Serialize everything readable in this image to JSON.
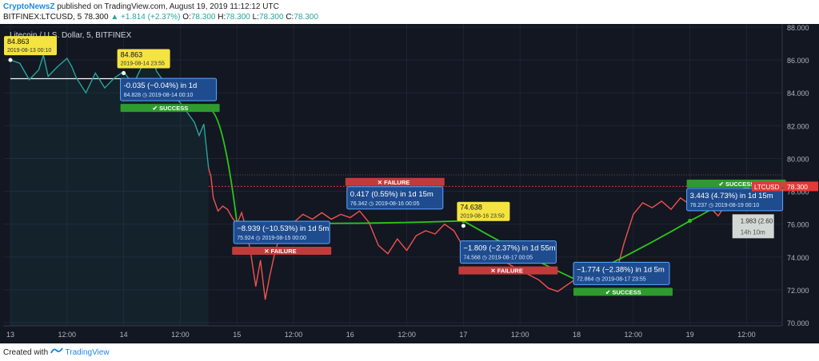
{
  "header": {
    "publisher": "CryptoNewsZ",
    "published_text": "published on TradingView.com, August 19, 2019 11:12:12 UTC"
  },
  "quote": {
    "symbol": "BITFINEX:LTCUSD, 5",
    "price": "78.300",
    "change": "▲ +1.814 (+2.37%)",
    "open_label": "O:",
    "open": "78.300",
    "high_label": "H:",
    "high": "78.300",
    "low_label": "L:",
    "low": "78.300",
    "close_label": "C:",
    "close": "78.300"
  },
  "footer": {
    "created_with": "Created with",
    "brand": "TradingView"
  },
  "colors": {
    "background": "#131722",
    "grid": "#1f2433",
    "axis_text": "#b2b5be",
    "pre_crash_line": "#26a69a",
    "post_crash_line": "#ef5350",
    "arrow": "#2ec31b",
    "label_box": "#1e4c8f",
    "label_border": "#5aa7ff",
    "yellow": "#f5e342",
    "failure": "#c23b3b",
    "success": "#2e9b2e",
    "price_tag": "#e53935"
  },
  "chart_data": {
    "type": "line",
    "title": "Litecoin / U.S. Dollar, 5, BITFINEX",
    "ylim": [
      70.0,
      88.0
    ],
    "y_ticks": [
      "70.000",
      "72.000",
      "74.000",
      "76.000",
      "78.000",
      "80.000",
      "82.000",
      "84.000",
      "86.000",
      "88.000"
    ],
    "x_ticks": [
      "13",
      "12:00",
      "14",
      "12:00",
      "15",
      "12:00",
      "16",
      "12:00",
      "17",
      "12:00",
      "18",
      "12:00",
      "19",
      "12:00"
    ],
    "x_tick_hours": [
      0,
      12,
      24,
      36,
      48,
      60,
      72,
      84,
      96,
      108,
      120,
      132,
      144,
      156
    ],
    "xlim_hours": [
      0,
      164
    ],
    "x_unit_note": "",
    "series": [
      {
        "color_key": "pre_crash_line",
        "x": [
          0,
          2,
          4,
          6,
          7,
          8,
          10,
          12,
          13,
          14,
          16,
          18,
          20,
          22,
          24,
          26,
          28,
          30,
          31,
          32,
          33,
          34,
          35,
          36,
          37,
          38,
          39,
          40,
          41,
          42
        ],
        "y": [
          86.0,
          85.8,
          84.8,
          85.4,
          86.3,
          85.0,
          85.6,
          86.1,
          85.6,
          84.9,
          84.0,
          85.2,
          84.3,
          84.9,
          85.3,
          84.5,
          85.7,
          86.2,
          85.3,
          84.9,
          84.6,
          84.2,
          83.7,
          83.4,
          83.0,
          82.6,
          82.2,
          81.4,
          82.1,
          79.4
        ]
      },
      {
        "color_key": "post_crash_line",
        "x": [
          42,
          42.5,
          43,
          44,
          45,
          46,
          47,
          48,
          49,
          50,
          51,
          52,
          53,
          54,
          55,
          56,
          57,
          58,
          60,
          62,
          64,
          66,
          68,
          70,
          72,
          74,
          76,
          78,
          80,
          82,
          84,
          86,
          88,
          90,
          92,
          94,
          96,
          98,
          100,
          102,
          104,
          106,
          108,
          110,
          112,
          114,
          116,
          118,
          120,
          121,
          122,
          124,
          126,
          128,
          130,
          132,
          134,
          136,
          138,
          140,
          142,
          144,
          146,
          148,
          150,
          152,
          154,
          156,
          158,
          160
        ],
        "y": [
          79.4,
          78.9,
          77.6,
          76.8,
          77.1,
          76.9,
          76.4,
          76.0,
          76.7,
          75.7,
          74.1,
          72.2,
          73.8,
          71.4,
          72.9,
          74.2,
          75.2,
          75.6,
          76.1,
          76.6,
          76.3,
          76.7,
          76.3,
          76.6,
          76.4,
          76.8,
          76.1,
          74.7,
          74.2,
          75.1,
          74.4,
          75.3,
          75.6,
          75.4,
          76.0,
          75.6,
          74.6,
          74.7,
          74.5,
          74.0,
          73.9,
          73.5,
          73.2,
          72.9,
          72.6,
          72.1,
          71.9,
          72.3,
          72.7,
          72.8,
          73.1,
          72.9,
          73.4,
          72.6,
          74.8,
          76.6,
          77.3,
          77.0,
          77.4,
          76.9,
          77.6,
          77.2,
          77.0,
          77.1,
          76.5,
          77.4,
          77.8,
          78.3,
          77.9,
          78.3
        ]
      }
    ],
    "ref_line_y": 84.863,
    "dotted_line_y": 79.0,
    "current_price": 78.3,
    "current_price_label": "LTCUSD",
    "current_price_text": "78.300",
    "arrows": [
      [
        [
          42,
          83.0
        ],
        [
          48,
          76.1
        ],
        [
          96,
          76.2
        ],
        [
          120,
          72.6
        ],
        [
          144,
          76.2
        ],
        [
          156,
          78.3
        ]
      ]
    ],
    "yellow_labels": [
      {
        "x": 0,
        "y": 86.0,
        "price": "84.863",
        "date": "2019-08-13 00:10"
      },
      {
        "x": 24,
        "y": 85.2,
        "price": "84.863",
        "date": "2019-08-14 23:55"
      },
      {
        "x": 96,
        "y": 75.9,
        "price": "74.638",
        "date": "2019-08-16 23:50"
      }
    ],
    "predictions": [
      {
        "x": 24,
        "y": 84.2,
        "change": "-0.035 (−0.04%) in 1d",
        "price": "84.828",
        "date": "2019-08-14 00:10",
        "status": "SUCCESS",
        "status_key": "success"
      },
      {
        "x": 48,
        "y": 75.5,
        "change": "−8.939 (−10.53%) in 1d 5m",
        "price": "75.924",
        "date": "2019-08-15 00:00",
        "status": "FAILURE",
        "status_key": "failure",
        "status_above": false
      },
      {
        "x": 72,
        "y": 77.6,
        "change": "0.417 (0.55%) in 1d 15m",
        "price": "76.342",
        "date": "2019-08-16 00:05",
        "status": "FAILURE",
        "status_key": "failure",
        "status_above": true
      },
      {
        "x": 96,
        "y": 74.3,
        "change": "−1.809 (−2.37%) in 1d 55m",
        "price": "74.568",
        "date": "2019-08-17 00:05",
        "status": "FAILURE",
        "status_key": "failure",
        "status_above": false
      },
      {
        "x": 120,
        "y": 73.0,
        "change": "−1.774 (−2.38%) in 1d 5m",
        "price": "72.864",
        "date": "2019-08-17 23:55",
        "status": "SUCCESS",
        "status_key": "success",
        "status_above": false
      },
      {
        "x": 144,
        "y": 77.5,
        "change": "3.443 (4.73%) in 1d 15m",
        "price": "76.237",
        "date": "2019-08-19 00:10",
        "status": "SUCCESS",
        "status_key": "success",
        "status_above": true
      }
    ],
    "measure_tooltip": {
      "value": "1.983 (2.60",
      "duration": "14h 10m"
    }
  }
}
